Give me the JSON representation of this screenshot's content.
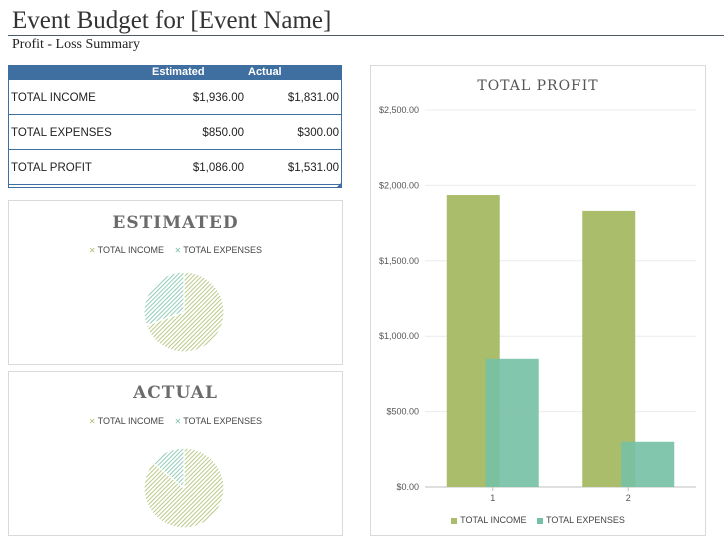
{
  "header": {
    "title": "Event Budget for [Event Name]",
    "subtitle": "Profit - Loss Summary"
  },
  "summary_table": {
    "columns": [
      "Estimated",
      "Actual"
    ],
    "rows": [
      {
        "label": "TOTAL INCOME",
        "estimated": "$1,936.00",
        "actual": "$1,831.00"
      },
      {
        "label": "TOTAL EXPENSES",
        "estimated": "$850.00",
        "actual": "$300.00"
      },
      {
        "label": "TOTAL PROFIT",
        "estimated": "$1,086.00",
        "actual": "$1,531.00"
      }
    ]
  },
  "colors": {
    "header_blue": "#3f6fa0",
    "income_green": "#a9bd6a",
    "expenses_teal": "#76c0a5"
  },
  "chart_data": [
    {
      "type": "pie",
      "title": "ESTIMATED",
      "legend": [
        "TOTAL INCOME",
        "TOTAL EXPENSES"
      ],
      "categories": [
        "TOTAL INCOME",
        "TOTAL EXPENSES"
      ],
      "values": [
        1936,
        850
      ],
      "legend_position": "top"
    },
    {
      "type": "pie",
      "title": "ACTUAL",
      "legend": [
        "TOTAL INCOME",
        "TOTAL EXPENSES"
      ],
      "categories": [
        "TOTAL INCOME",
        "TOTAL EXPENSES"
      ],
      "values": [
        1831,
        300
      ],
      "legend_position": "top"
    },
    {
      "type": "bar",
      "title": "TOTAL PROFIT",
      "categories": [
        "1",
        "2"
      ],
      "series": [
        {
          "name": "TOTAL INCOME",
          "values": [
            1936,
            1831
          ]
        },
        {
          "name": "TOTAL EXPENSES",
          "values": [
            850,
            300
          ]
        }
      ],
      "ylim": [
        0,
        2500
      ],
      "yticks": [
        0,
        500,
        1000,
        1500,
        2000,
        2500
      ],
      "ytick_labels": [
        "$0.00",
        "$500.00",
        "$1,000.00",
        "$1,500.00",
        "$2,000.00",
        "$2,500.00"
      ],
      "grid": true,
      "legend_position": "bottom"
    }
  ]
}
